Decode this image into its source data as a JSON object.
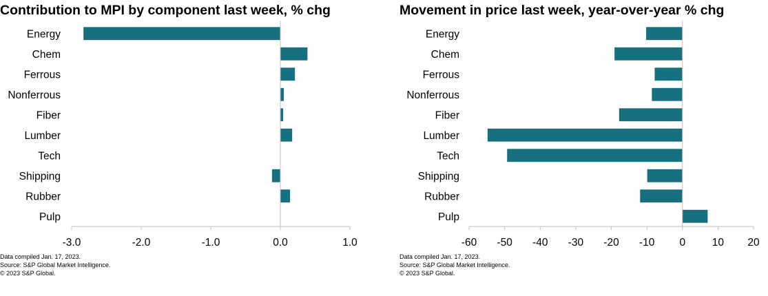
{
  "chart_data": [
    {
      "type": "bar",
      "orientation": "horizontal",
      "title": "Contribution to MPI by component last week, % chg",
      "categories": [
        "Energy",
        "Chem",
        "Ferrous",
        "Nonferrous",
        "Fiber",
        "Lumber",
        "Tech",
        "Shipping",
        "Rubber",
        "Pulp"
      ],
      "values": [
        -2.83,
        0.39,
        0.21,
        0.05,
        0.04,
        0.17,
        0.0,
        -0.12,
        0.14,
        0.0
      ],
      "xlim": [
        -3.0,
        1.0
      ],
      "x_ticks": [
        "-3.0",
        "-2.0",
        "-1.0",
        "0.0",
        "1.0"
      ],
      "x_tick_values": [
        -3.0,
        -2.0,
        -1.0,
        0.0,
        1.0
      ],
      "xlabel": "",
      "ylabel": "",
      "grid": false,
      "bar_color": "#16707F",
      "notes": [
        "Data compiled Jan. 17, 2023.",
        "Source: S&P Global Market Intelligence.",
        "© 2023 S&P Global."
      ]
    },
    {
      "type": "bar",
      "orientation": "horizontal",
      "title": "Movement in price last week, year-over-year % chg",
      "categories": [
        "Energy",
        "Chem",
        "Ferrous",
        "Nonferrous",
        "Fiber",
        "Lumber",
        "Tech",
        "Shipping",
        "Rubber",
        "Pulp"
      ],
      "values": [
        -10.2,
        -19.1,
        -7.8,
        -8.6,
        -17.8,
        -54.8,
        -49.3,
        -9.9,
        -11.9,
        7.1
      ],
      "xlim": [
        -60,
        20
      ],
      "x_ticks": [
        "-60",
        "-50",
        "-40",
        "-30",
        "-20",
        "-10",
        "0",
        "10",
        "20"
      ],
      "x_tick_values": [
        -60,
        -50,
        -40,
        -30,
        -20,
        -10,
        0,
        10,
        20
      ],
      "xlabel": "",
      "ylabel": "",
      "grid": false,
      "bar_color": "#16707F",
      "notes": [
        "Data compiled Jan. 17, 2023.",
        "Source: S&P Global Market Intelligence.",
        "© 2023 S&P Global."
      ]
    }
  ]
}
